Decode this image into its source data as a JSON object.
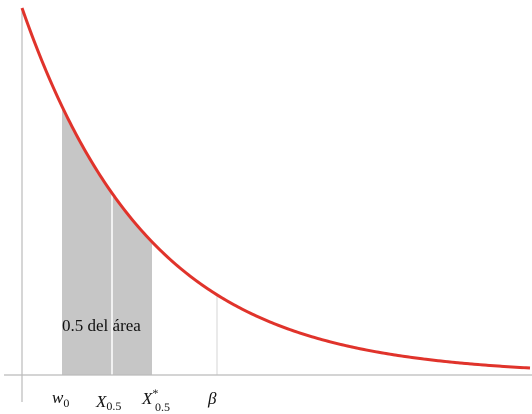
{
  "area_label": "0.5 del área",
  "axis_labels": [
    {
      "base": "w",
      "sub": "0"
    },
    {
      "base": "X",
      "sub": "0.5"
    },
    {
      "base": "X",
      "sup": "*",
      "sub": "0.5"
    },
    {
      "base": "β"
    }
  ]
}
